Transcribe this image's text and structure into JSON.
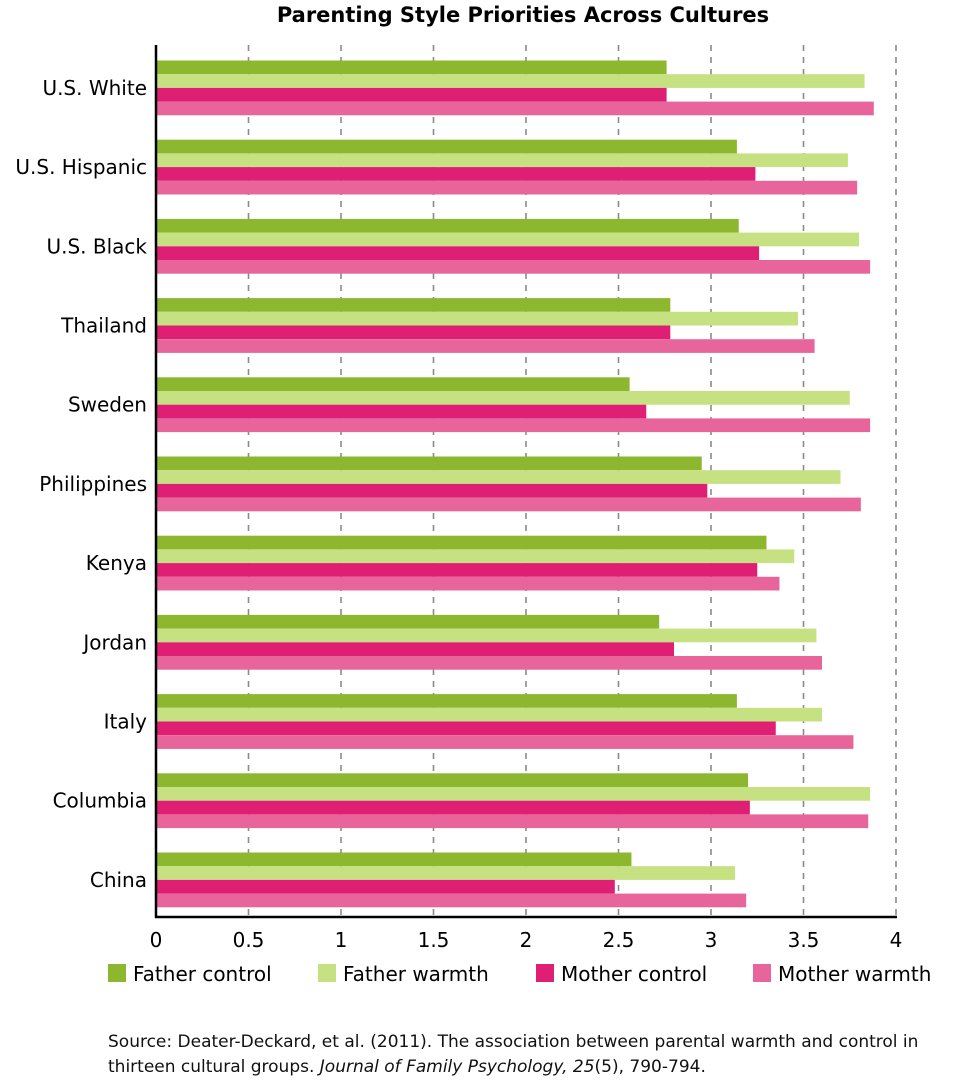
{
  "chart_data": {
    "type": "bar",
    "orientation": "horizontal",
    "title": "Parenting Style Priorities Across Cultures",
    "xlabel": "",
    "ylabel": "",
    "xlim": [
      0,
      4
    ],
    "x_ticks": [
      "0",
      "0.5",
      "1",
      "1.5",
      "2",
      "2.5",
      "3",
      "3.5",
      "4"
    ],
    "grid": "vertical dashed",
    "legend_position": "bottom",
    "categories": [
      "U.S. White",
      "U.S. Hispanic",
      "U.S. Black",
      "Thailand",
      "Sweden",
      "Philippines",
      "Kenya",
      "Jordan",
      "Italy",
      "Columbia",
      "China"
    ],
    "series": [
      {
        "name": "Father control",
        "color": "#8db72f",
        "values": [
          2.76,
          3.14,
          3.15,
          2.78,
          2.56,
          2.95,
          3.3,
          2.72,
          3.14,
          3.2,
          2.57
        ]
      },
      {
        "name": "Father warmth",
        "color": "#c5e181",
        "values": [
          3.83,
          3.74,
          3.8,
          3.47,
          3.75,
          3.7,
          3.45,
          3.57,
          3.6,
          3.86,
          3.13
        ]
      },
      {
        "name": "Mother control",
        "color": "#de1f73",
        "values": [
          2.76,
          3.24,
          3.26,
          2.78,
          2.65,
          2.98,
          3.25,
          2.8,
          3.35,
          3.21,
          2.48
        ]
      },
      {
        "name": "Mother warmth",
        "color": "#e8659b",
        "values": [
          3.88,
          3.79,
          3.86,
          3.56,
          3.86,
          3.81,
          3.37,
          3.6,
          3.77,
          3.85,
          3.19
        ]
      }
    ]
  },
  "source": {
    "prefix": "Source: Deater-Deckard, et al. (2011). The association between parental warmth and control in thirteen cultural groups. ",
    "journal": "Journal of Family Psychology, 25",
    "issue": "(5), 790-794."
  }
}
